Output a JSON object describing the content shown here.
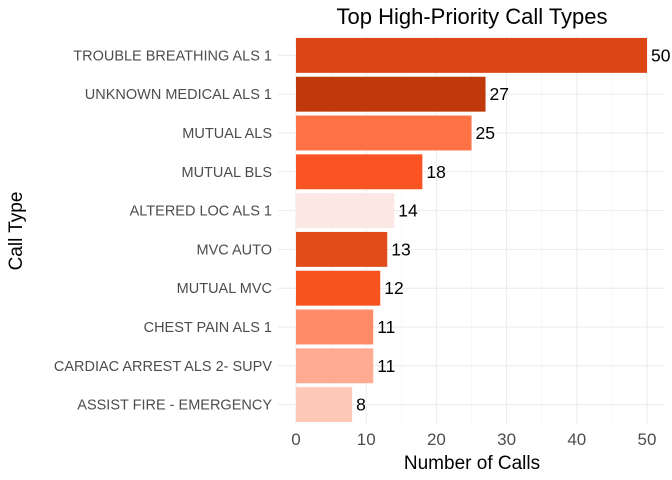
{
  "chart_data": {
    "type": "bar",
    "orientation": "horizontal",
    "title": "Top High-Priority Call Types",
    "xlabel": "Number of Calls",
    "ylabel": "Call Type",
    "xlim": [
      0,
      52
    ],
    "x_ticks": [
      0,
      10,
      20,
      30,
      40,
      50
    ],
    "grid": true,
    "legend": "none",
    "categories": [
      "TROUBLE BREATHING ALS 1",
      "UNKNOWN MEDICAL ALS 1",
      "MUTUAL ALS",
      "MUTUAL BLS",
      "ALTERED LOC ALS 1",
      "MVC AUTO",
      "MUTUAL MVC",
      "CHEST PAIN ALS 1",
      "CARDIAC ARREST ALS 2- SUPV",
      "ASSIST FIRE - EMERGENCY"
    ],
    "values": [
      50,
      27,
      25,
      18,
      14,
      13,
      12,
      11,
      11,
      8
    ],
    "colors": [
      "#dc4617",
      "#c0390b",
      "#ff7245",
      "#fc5322",
      "#fbe8e4",
      "#e24b1a",
      "#f7531f",
      "#ff8b68",
      "#ffab93",
      "#fdc9b6"
    ]
  }
}
